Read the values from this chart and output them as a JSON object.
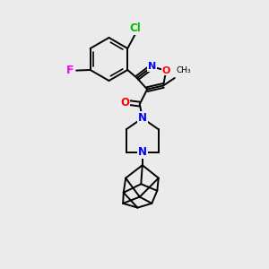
{
  "bg_color": "#ebebeb",
  "line_color": "#000000",
  "bond_width": 1.4,
  "atom_colors": {
    "C": "#000000",
    "N": "#0000ff",
    "O": "#ff0000",
    "F": "#ff00ff",
    "Cl": "#00bb00"
  },
  "font_size": 8.5,
  "figsize": [
    3.0,
    3.0
  ],
  "dpi": 100
}
